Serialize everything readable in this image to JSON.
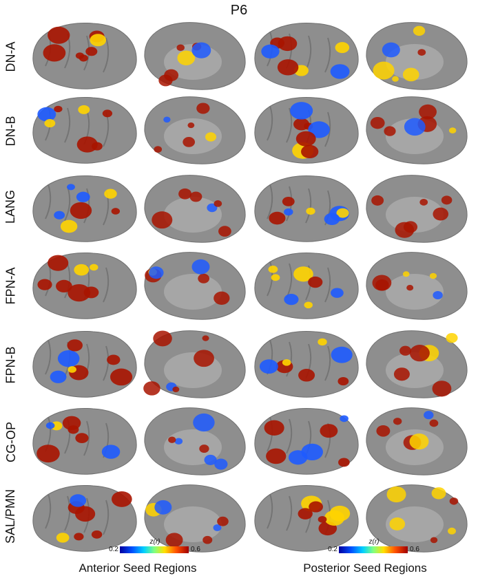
{
  "title": "P6",
  "rows": [
    "DN-A",
    "DN-B",
    "LANG",
    "FPN-A",
    "FPN-B",
    "CG-OP",
    "SAL/PMN"
  ],
  "colorbar": {
    "label": "z(r)",
    "min": "0.2",
    "max": "0.6"
  },
  "columns": [
    "Anterior Seed Regions",
    "Posterior Seed Regions"
  ],
  "colors": {
    "brain": "#8e8e8e",
    "medial_wall": "#a6a6a6",
    "high": "#a81400",
    "mid": "#ffd400",
    "low": "#1e5bff"
  }
}
